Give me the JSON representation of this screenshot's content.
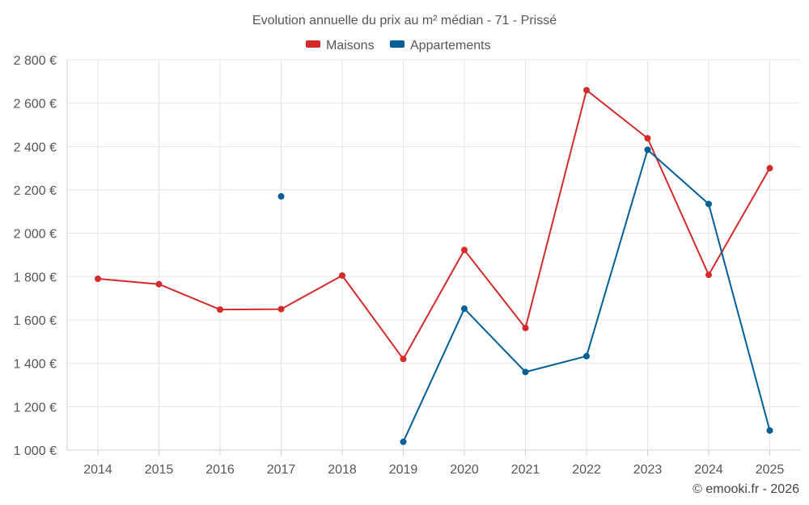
{
  "chart_data": {
    "type": "line",
    "title": "Evolution annuelle du prix au m² médian - 71 - Prissé",
    "categories": [
      "2014",
      "2015",
      "2016",
      "2017",
      "2018",
      "2019",
      "2020",
      "2021",
      "2022",
      "2023",
      "2024",
      "2025"
    ],
    "series": [
      {
        "name": "Maisons",
        "color": "#d42a2a",
        "values": [
          1790,
          1765,
          1648,
          1650,
          1805,
          1420,
          1923,
          1563,
          2660,
          2438,
          1808,
          2300
        ]
      },
      {
        "name": "Appartements",
        "color": "#005f99",
        "values": [
          null,
          null,
          null,
          2170,
          null,
          1038,
          1652,
          1360,
          1433,
          2385,
          2135,
          1090
        ]
      }
    ],
    "ylim": [
      1000,
      2800
    ],
    "yticks": [
      {
        "value": 1000,
        "label": "1 000 €"
      },
      {
        "value": 1200,
        "label": "1 200 €"
      },
      {
        "value": 1400,
        "label": "1 400 €"
      },
      {
        "value": 1600,
        "label": "1 600 €"
      },
      {
        "value": 1800,
        "label": "1 800 €"
      },
      {
        "value": 2000,
        "label": "2 000 €"
      },
      {
        "value": 2200,
        "label": "2 200 €"
      },
      {
        "value": 2400,
        "label": "2 400 €"
      },
      {
        "value": 2600,
        "label": "2 600 €"
      },
      {
        "value": 2800,
        "label": "2 800 €"
      }
    ],
    "xlabel": "",
    "ylabel": "",
    "grid": true,
    "legend_position": "top-center"
  },
  "credit": "© emooki.fr - 2026"
}
